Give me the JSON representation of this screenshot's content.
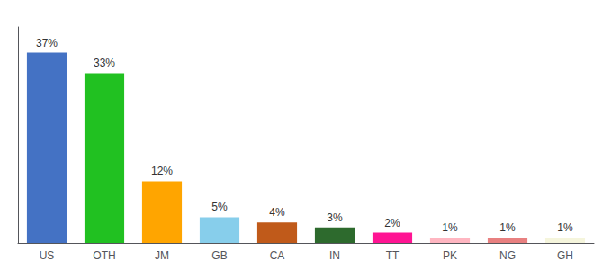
{
  "chart_data": {
    "type": "bar",
    "categories": [
      "US",
      "OTH",
      "JM",
      "GB",
      "CA",
      "IN",
      "TT",
      "PK",
      "NG",
      "GH"
    ],
    "values": [
      37,
      33,
      12,
      5,
      4,
      3,
      2,
      1,
      1,
      1
    ],
    "value_labels": [
      "37%",
      "33%",
      "12%",
      "5%",
      "4%",
      "3%",
      "2%",
      "1%",
      "1%",
      "1%"
    ],
    "colors": [
      "#4472C4",
      "#21C121",
      "#FFA500",
      "#87CEEB",
      "#C05A1A",
      "#2D6A2D",
      "#FF1493",
      "#FFB6C1",
      "#E88080",
      "#F5F5DC"
    ],
    "ylim": [
      0,
      42
    ],
    "grid": false,
    "data_labels": true,
    "tick_labels": "x"
  }
}
